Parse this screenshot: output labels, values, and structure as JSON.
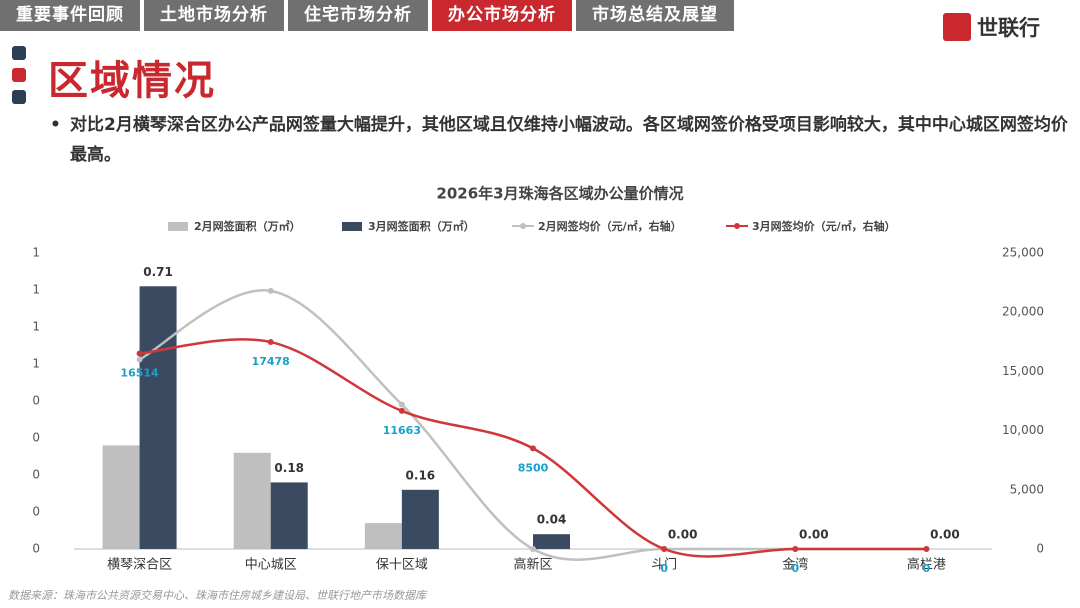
{
  "nav": [
    "重要事件回顾",
    "土地市场分析",
    "住宅市场分析",
    "办公市场分析",
    "市场总结及展望"
  ],
  "logo": "世联行",
  "heading": "区域情况",
  "bullet": "对比2月横琴深合区办公产品网签量大幅提升，其他区域且仅维持小幅波动。各区域网签价格受项目影响较大，其中中心城区网签均价最高。",
  "source": "数据来源：珠海市公共资源交易中心、珠海市住房城乡建设局、世联行地产市场数据库",
  "chart_data": {
    "type": "bar",
    "title": "2026年3月珠海各区域办公量价情况",
    "categories": [
      "横琴深合区",
      "中心城区",
      "保十区域",
      "高新区",
      "斗门",
      "金湾",
      "高栏港"
    ],
    "series": [
      {
        "name": "2月网签面积（万㎡）",
        "type": "bar",
        "color": "#bfbfbf",
        "values": [
          0.28,
          0.26,
          0.07,
          0,
          0,
          0,
          0
        ]
      },
      {
        "name": "3月网签面积（万㎡）",
        "type": "bar",
        "color": "#3a4a60",
        "values": [
          0.71,
          0.18,
          0.16,
          0.04,
          0,
          0,
          0
        ],
        "value_labels": [
          "0.71",
          "0.18",
          "0.16",
          "0.04",
          "0.00",
          "0.00",
          "0.00"
        ]
      },
      {
        "name": "2月网签均价（元/㎡，右轴）",
        "type": "line",
        "axis": "y2",
        "color": "#c0c0c0",
        "values": [
          16000,
          21800,
          12200,
          0,
          0,
          0,
          0
        ]
      },
      {
        "name": "3月网签均价（元/㎡，右轴）",
        "type": "line",
        "axis": "y2",
        "color": "#d0373a",
        "values": [
          16514,
          17478,
          11663,
          8500,
          0,
          0,
          0
        ]
      }
    ],
    "ylim": [
      0,
      0.8
    ],
    "yticks": [
      0,
      {
        "value": 0.1,
        "label": "0"
      },
      {
        "value": 0.2,
        "label": "0"
      },
      {
        "value": 0.3,
        "label": "0"
      },
      {
        "value": 0.4,
        "label": "0"
      },
      {
        "value": 0.5,
        "label": "1"
      },
      {
        "value": 0.6,
        "label": "1"
      },
      {
        "value": 0.7,
        "label": "1"
      },
      {
        "value": 0.8,
        "label": "1"
      }
    ],
    "y2lim": [
      0,
      25000
    ],
    "y2ticks": [
      0,
      {
        "value": 5000,
        "label": "5,000"
      },
      {
        "value": 10000,
        "label": "10,000"
      },
      {
        "value": 15000,
        "label": "15,000"
      },
      {
        "value": 20000,
        "label": "20,000"
      },
      {
        "value": 25000,
        "label": "25,000"
      }
    ],
    "line_label_color": "#1aa0c8"
  }
}
